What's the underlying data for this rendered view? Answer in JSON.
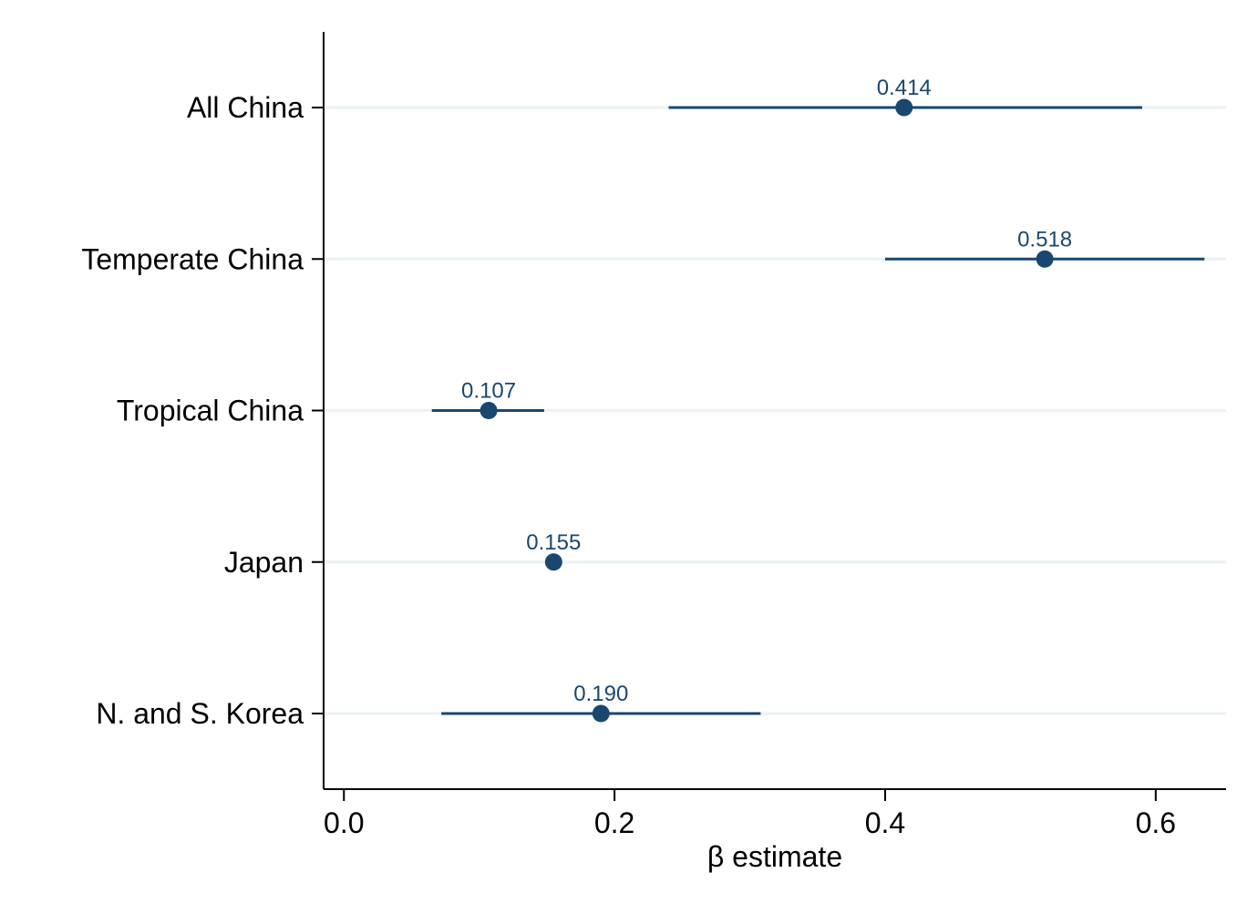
{
  "chart_data": {
    "type": "scatter",
    "subtype": "coefficient-plot-with-confidence-intervals",
    "orientation": "horizontal",
    "categories": [
      "All China",
      "Temperate China",
      "Tropical China",
      "Japan",
      "N. and S. Korea"
    ],
    "series": [
      {
        "estimates": [
          0.414,
          0.518,
          0.107,
          0.155,
          0.19
        ],
        "ci_low": [
          0.24,
          0.4,
          0.065,
          0.155,
          0.072
        ],
        "ci_high": [
          0.59,
          0.636,
          0.148,
          0.155,
          0.308
        ],
        "labels": [
          "0.414",
          "0.518",
          "0.107",
          "0.155",
          "0.190"
        ]
      }
    ],
    "xlabel": "β estimate",
    "ylabel": "",
    "xlim": [
      -0.015,
      0.652
    ],
    "xticks": [
      0.0,
      0.2,
      0.4,
      0.6
    ],
    "xtick_labels": [
      "0.0",
      "0.2",
      "0.4",
      "0.6"
    ],
    "grid": "horizontal-at-categories",
    "legend": "none",
    "colors": {
      "marker": "#1a476f",
      "ci_line": "#1a476f",
      "label": "#1a476f",
      "grid": "#eaf2f3",
      "axis": "#000000"
    }
  }
}
